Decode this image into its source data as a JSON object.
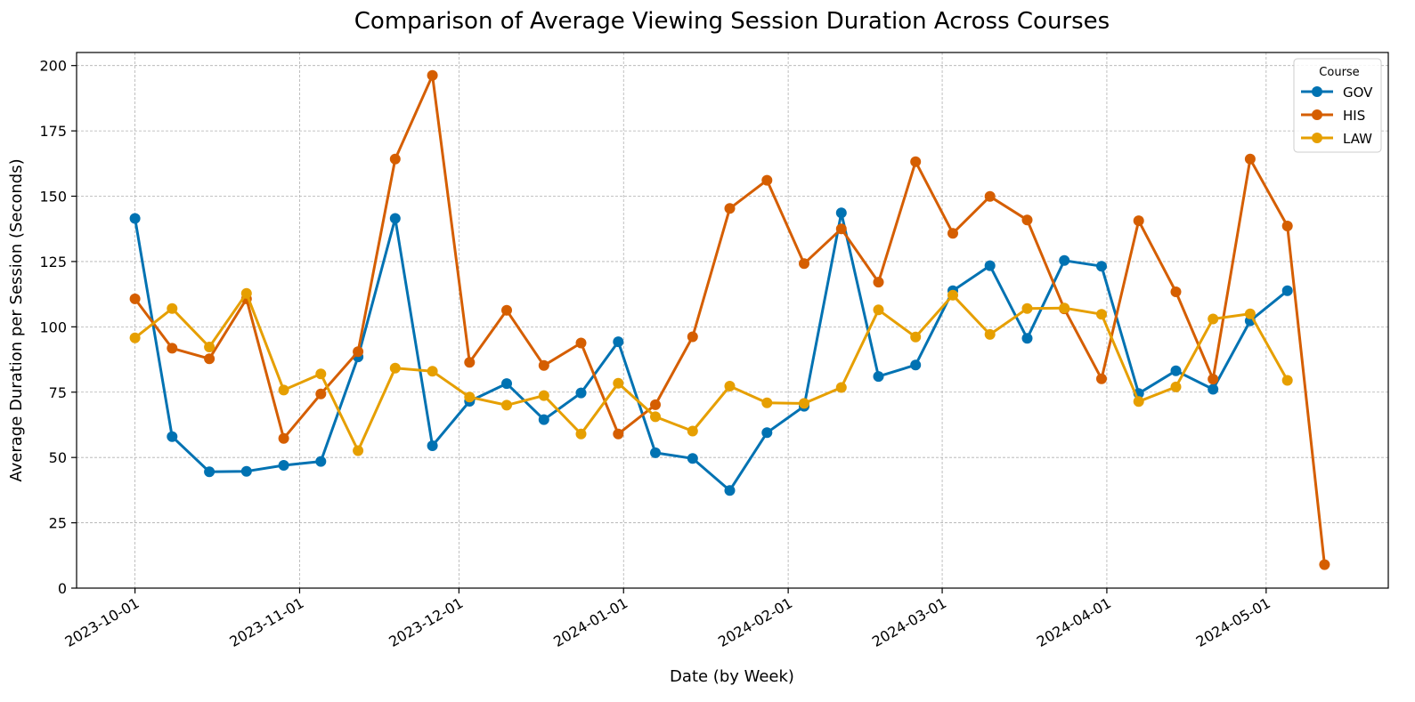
{
  "chart_data": {
    "type": "line",
    "title": "Comparison of Average Viewing Session Duration Across Courses",
    "xlabel": "Date (by Week)",
    "ylabel": "Average Duration per Session (Seconds)",
    "x_type": "date",
    "x_ticks": [
      "2023-10-01",
      "2023-11-01",
      "2023-12-01",
      "2024-01-01",
      "2024-02-01",
      "2024-03-01",
      "2024-04-01",
      "2024-05-01"
    ],
    "xlim": [
      "2023-09-20",
      "2024-05-24"
    ],
    "y_ticks": [
      0,
      25,
      50,
      75,
      100,
      125,
      150,
      175,
      200
    ],
    "ylim": [
      0,
      205
    ],
    "grid": true,
    "legend": {
      "title": "Course",
      "position": "top-right"
    },
    "series": [
      {
        "name": "GOV",
        "color": "#0072B2",
        "points": [
          [
            "2023-10-01",
            141.5
          ],
          [
            "2023-10-08",
            58.0
          ],
          [
            "2023-10-15",
            44.5
          ],
          [
            "2023-10-22",
            44.7
          ],
          [
            "2023-10-29",
            47.0
          ],
          [
            "2023-11-05",
            48.5
          ],
          [
            "2023-11-12",
            88.5
          ],
          [
            "2023-11-19",
            141.5
          ],
          [
            "2023-11-26",
            54.5
          ],
          [
            "2023-12-03",
            71.5
          ],
          [
            "2023-12-10",
            78.3
          ],
          [
            "2023-12-17",
            64.5
          ],
          [
            "2023-12-24",
            74.7
          ],
          [
            "2023-12-31",
            94.3
          ],
          [
            "2024-01-07",
            51.8
          ],
          [
            "2024-01-14",
            49.6
          ],
          [
            "2024-01-21",
            37.4
          ],
          [
            "2024-01-28",
            59.5
          ],
          [
            "2024-02-04",
            69.6
          ],
          [
            "2024-02-11",
            143.6
          ],
          [
            "2024-02-18",
            81.0
          ],
          [
            "2024-02-25",
            85.4
          ],
          [
            "2024-03-03",
            113.8
          ],
          [
            "2024-03-10",
            123.4
          ],
          [
            "2024-03-17",
            95.6
          ],
          [
            "2024-03-24",
            125.4
          ],
          [
            "2024-03-31",
            123.2
          ],
          [
            "2024-04-07",
            74.5
          ],
          [
            "2024-04-14",
            83.2
          ],
          [
            "2024-04-21",
            76.1
          ],
          [
            "2024-04-28",
            102.3
          ],
          [
            "2024-05-05",
            113.8
          ]
        ]
      },
      {
        "name": "HIS",
        "color": "#D55E00",
        "points": [
          [
            "2023-10-01",
            110.7
          ],
          [
            "2023-10-08",
            91.8
          ],
          [
            "2023-10-15",
            87.8
          ],
          [
            "2023-10-22",
            110.7
          ],
          [
            "2023-10-29",
            57.3
          ],
          [
            "2023-11-05",
            74.3
          ],
          [
            "2023-11-12",
            90.5
          ],
          [
            "2023-11-19",
            164.2
          ],
          [
            "2023-11-26",
            196.2
          ],
          [
            "2023-12-03",
            86.4
          ],
          [
            "2023-12-10",
            106.3
          ],
          [
            "2023-12-17",
            85.2
          ],
          [
            "2023-12-24",
            93.8
          ],
          [
            "2023-12-31",
            59.0
          ],
          [
            "2024-01-07",
            70.2
          ],
          [
            "2024-01-14",
            96.2
          ],
          [
            "2024-01-21",
            145.3
          ],
          [
            "2024-01-28",
            156.1
          ],
          [
            "2024-02-04",
            124.2
          ],
          [
            "2024-02-11",
            137.5
          ],
          [
            "2024-02-18",
            117.1
          ],
          [
            "2024-02-25",
            163.2
          ],
          [
            "2024-03-03",
            135.8
          ],
          [
            "2024-03-10",
            149.9
          ],
          [
            "2024-03-17",
            140.9
          ],
          [
            "2024-03-24",
            106.9
          ],
          [
            "2024-03-31",
            80.1
          ],
          [
            "2024-04-07",
            140.6
          ],
          [
            "2024-04-14",
            113.4
          ],
          [
            "2024-04-21",
            80.0
          ],
          [
            "2024-04-28",
            164.2
          ],
          [
            "2024-05-05",
            138.6
          ],
          [
            "2024-05-12",
            9.0
          ]
        ]
      },
      {
        "name": "LAW",
        "color": "#E69F00",
        "points": [
          [
            "2023-10-01",
            95.8
          ],
          [
            "2023-10-08",
            107.0
          ],
          [
            "2023-10-15",
            92.3
          ],
          [
            "2023-10-22",
            112.8
          ],
          [
            "2023-10-29",
            75.8
          ],
          [
            "2023-11-05",
            82.0
          ],
          [
            "2023-11-12",
            52.6
          ],
          [
            "2023-11-19",
            84.2
          ],
          [
            "2023-11-26",
            83.0
          ],
          [
            "2023-12-03",
            73.1
          ],
          [
            "2023-12-10",
            70.0
          ],
          [
            "2023-12-17",
            73.7
          ],
          [
            "2023-12-24",
            59.0
          ],
          [
            "2023-12-31",
            78.4
          ],
          [
            "2024-01-07",
            65.6
          ],
          [
            "2024-01-14",
            60.1
          ],
          [
            "2024-01-21",
            77.3
          ],
          [
            "2024-01-28",
            70.9
          ],
          [
            "2024-02-04",
            70.7
          ],
          [
            "2024-02-11",
            76.8
          ],
          [
            "2024-02-18",
            106.5
          ],
          [
            "2024-02-25",
            96.1
          ],
          [
            "2024-03-03",
            112.1
          ],
          [
            "2024-03-10",
            97.1
          ],
          [
            "2024-03-17",
            107.0
          ],
          [
            "2024-03-24",
            107.2
          ],
          [
            "2024-03-31",
            104.8
          ],
          [
            "2024-04-07",
            71.4
          ],
          [
            "2024-04-14",
            77.0
          ],
          [
            "2024-04-21",
            103.0
          ],
          [
            "2024-04-28",
            105.0
          ],
          [
            "2024-05-05",
            79.5
          ]
        ]
      }
    ]
  }
}
